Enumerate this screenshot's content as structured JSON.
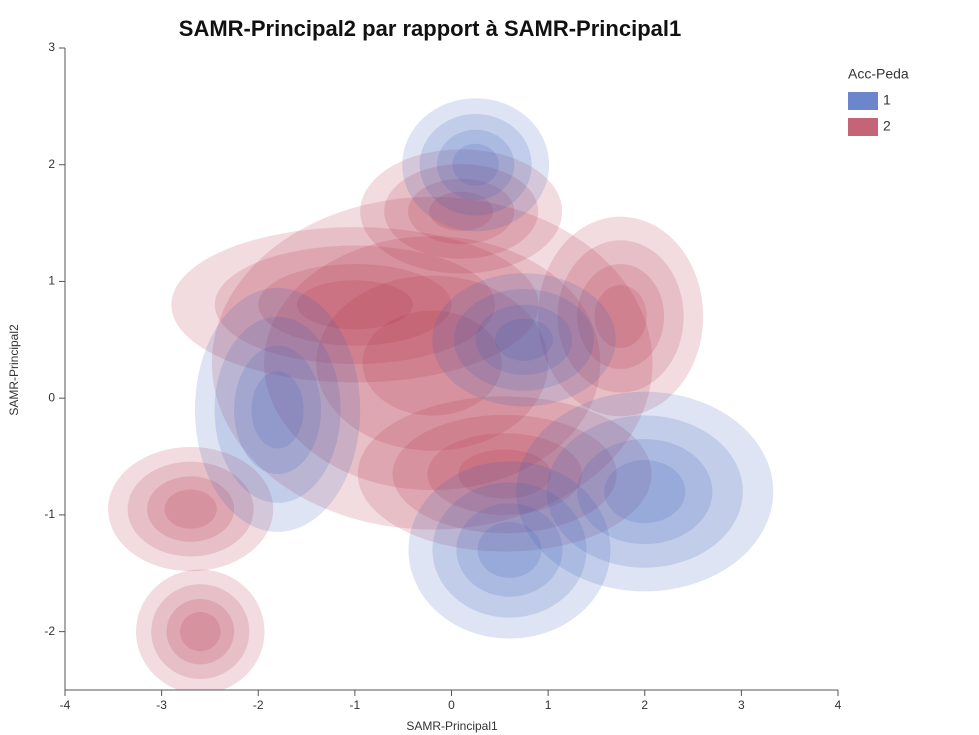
{
  "chart_data": {
    "type": "contour",
    "title": "SAMR-Principal2 par rapport à SAMR-Principal1",
    "x_label": "SAMR-Principal1",
    "y_label": "SAMR-Principal2",
    "legend_title": "Acc-Peda",
    "xlim": [
      -4,
      4
    ],
    "xticks": [
      -4,
      -3,
      -2,
      -1,
      0,
      1,
      2,
      3,
      4
    ],
    "ylim": [
      -2.5,
      3
    ],
    "yticks": [
      -2,
      -1,
      0,
      1,
      2,
      3
    ],
    "series": [
      {
        "name": "1",
        "color": "#3a5db8",
        "blobs": [
          {
            "x": -1.8,
            "y": -0.1,
            "rx": 0.45,
            "ry": 0.55
          },
          {
            "x": 0.25,
            "y": 2.0,
            "rx": 0.4,
            "ry": 0.3
          },
          {
            "x": 2.0,
            "y": -0.8,
            "rx": 0.7,
            "ry": 0.45
          },
          {
            "x": 0.6,
            "y": -1.3,
            "rx": 0.55,
            "ry": 0.4
          },
          {
            "x": 0.75,
            "y": 0.5,
            "rx": 0.5,
            "ry": 0.3
          }
        ]
      },
      {
        "name": "2",
        "color": "#b3304a",
        "blobs": [
          {
            "x": -0.2,
            "y": 0.3,
            "rx": 1.2,
            "ry": 0.75
          },
          {
            "x": 1.75,
            "y": 0.7,
            "rx": 0.45,
            "ry": 0.45
          },
          {
            "x": 0.55,
            "y": -0.65,
            "rx": 0.8,
            "ry": 0.35
          },
          {
            "x": -2.7,
            "y": -0.95,
            "rx": 0.45,
            "ry": 0.28
          },
          {
            "x": -2.6,
            "y": -2.0,
            "rx": 0.35,
            "ry": 0.28
          },
          {
            "x": 0.1,
            "y": 1.6,
            "rx": 0.55,
            "ry": 0.28
          },
          {
            "x": -1.0,
            "y": 0.8,
            "rx": 1.0,
            "ry": 0.35
          }
        ]
      }
    ]
  }
}
